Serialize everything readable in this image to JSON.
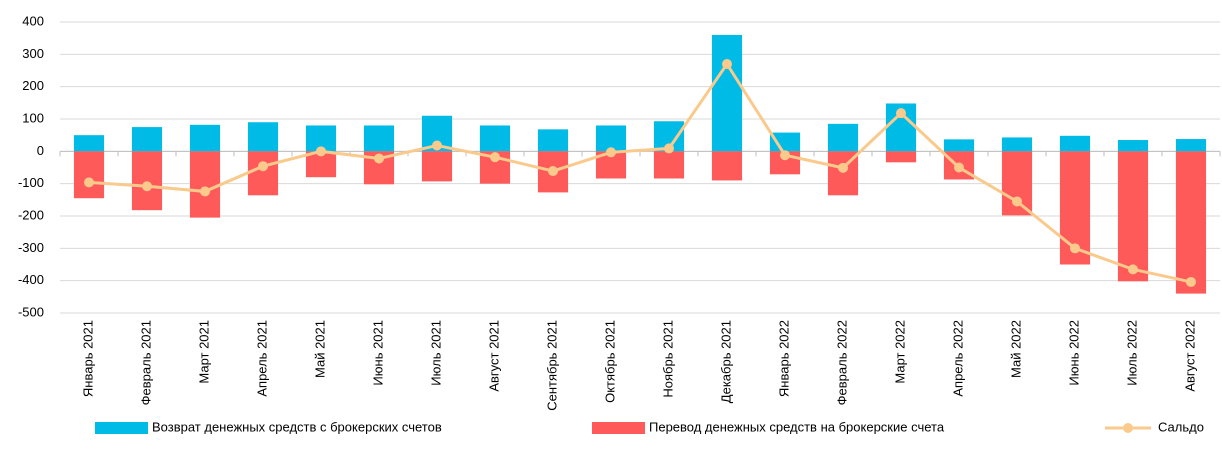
{
  "chart_data": {
    "type": "bar",
    "categories": [
      "Январь 2021",
      "Февраль 2021",
      "Март 2021",
      "Апрель 2021",
      "Май 2021",
      "Июнь 2021",
      "Июль 2021",
      "Август 2021",
      "Сентябрь 2021",
      "Октябрь 2021",
      "Ноябрь 2021",
      "Декабрь 2021",
      "Январь 2022",
      "Февраль 2022",
      "Март 2022",
      "Апрель 2022",
      "Май 2022",
      "Июнь 2022",
      "Июль 2022",
      "Август 2022"
    ],
    "series": [
      {
        "name": "Возврат денежных средств с брокерских счетов",
        "type": "bar",
        "color": "#00bbe6",
        "values": [
          50,
          75,
          82,
          90,
          80,
          80,
          110,
          80,
          68,
          80,
          93,
          360,
          58,
          85,
          148,
          37,
          43,
          48,
          35,
          38
        ]
      },
      {
        "name": "Перевод денежных средств на брокерские счета",
        "type": "bar",
        "color": "#ff5a5a",
        "values": [
          -145,
          -182,
          -205,
          -136,
          -80,
          -102,
          -93,
          -100,
          -127,
          -84,
          -84,
          -90,
          -71,
          -136,
          -34,
          -87,
          -198,
          -350,
          -402,
          -440
        ]
      },
      {
        "name": "Сальдо",
        "type": "line",
        "color": "#fac98c",
        "values": [
          -96,
          -108,
          -124,
          -46,
          0,
          -22,
          18,
          -18,
          -61,
          -3,
          9,
          270,
          -12,
          -51,
          118,
          -50,
          -155,
          -300,
          -365,
          -404
        ]
      }
    ],
    "ylim": [
      -500,
      400
    ],
    "yticks": [
      -500,
      -400,
      -300,
      -200,
      -100,
      0,
      100,
      200,
      300,
      400
    ],
    "grid": true,
    "legend": "bottom"
  }
}
